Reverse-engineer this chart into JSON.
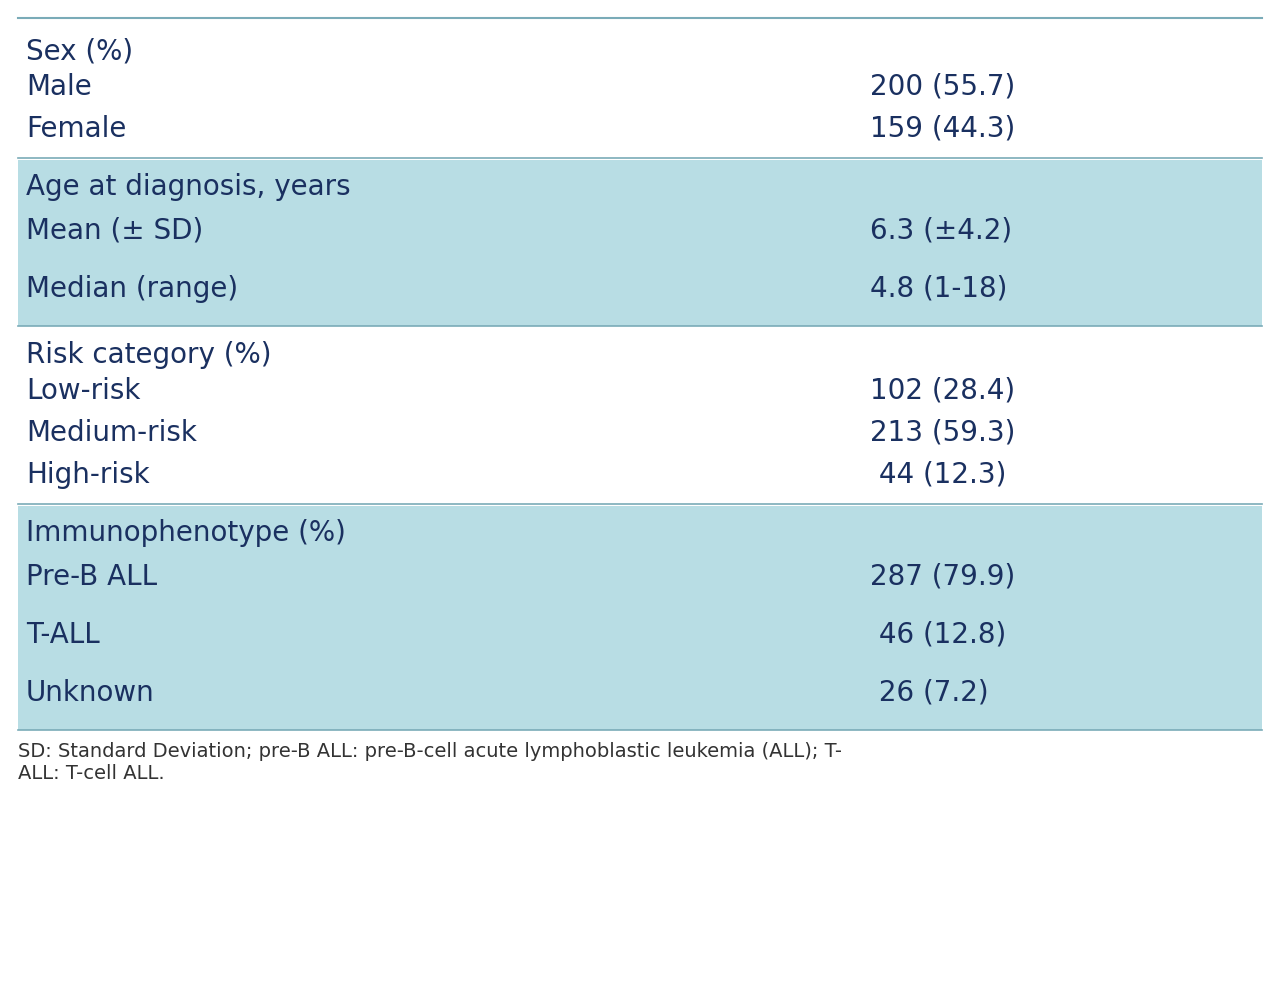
{
  "background_color": "#ffffff",
  "highlight_color": "#b8dde4",
  "text_color": "#1a3060",
  "line_color": "#7aabb8",
  "font_size": 20,
  "small_font_size": 14,
  "sections": [
    {
      "header": "Sex (%)",
      "highlighted": false,
      "rows": [
        {
          "label": "Male",
          "value": "200 (55.7)"
        },
        {
          "label": "Female",
          "value": "159 (44.3)"
        }
      ]
    },
    {
      "header": "Age at diagnosis, years",
      "highlighted": true,
      "rows": [
        {
          "label": "Mean (± SD)",
          "value": "6.3 (±4.2)"
        },
        {
          "label": "Median (range)",
          "value": "4.8 (1-18)"
        }
      ]
    },
    {
      "header": "Risk category (%)",
      "highlighted": false,
      "rows": [
        {
          "label": "Low-risk",
          "value": "102 (28.4)"
        },
        {
          "label": "Medium-risk",
          "value": "213 (59.3)"
        },
        {
          "label": "High-risk",
          "value": " 44 (12.3)"
        }
      ]
    },
    {
      "header": "Immunophenotype (%)",
      "highlighted": true,
      "rows": [
        {
          "label": "Pre-B ALL",
          "value": "287 (79.9)"
        },
        {
          "label": "T-ALL",
          "value": " 46 (12.8)"
        },
        {
          "label": "Unknown",
          "value": " 26 (7.2)"
        }
      ]
    }
  ],
  "footnote": "SD: Standard Deviation; pre-B ALL: pre-B-cell acute lymphoblastic leukemia (ALL); T-\nALL: T-cell ALL."
}
